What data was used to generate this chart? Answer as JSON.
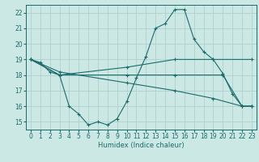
{
  "xlabel": "Humidex (Indice chaleur)",
  "bg_color": "#cce8e4",
  "line_color": "#1a6b6b",
  "grid_color": "#aed0cc",
  "xlim": [
    -0.5,
    23.5
  ],
  "ylim": [
    14.5,
    22.5
  ],
  "yticks": [
    15,
    16,
    17,
    18,
    19,
    20,
    21,
    22
  ],
  "xticks": [
    0,
    1,
    2,
    3,
    4,
    5,
    6,
    7,
    8,
    9,
    10,
    11,
    12,
    13,
    14,
    15,
    16,
    17,
    18,
    19,
    20,
    21,
    22,
    23
  ],
  "series": [
    {
      "x": [
        0,
        1,
        2,
        3,
        4,
        5,
        6,
        7,
        8,
        9,
        10,
        11,
        12,
        13,
        14,
        15,
        16,
        17,
        18,
        19,
        20,
        21,
        22,
        23
      ],
      "y": [
        19,
        18.8,
        18.2,
        18,
        16,
        15.5,
        14.8,
        15,
        14.8,
        15.2,
        16.3,
        17.8,
        19.2,
        21,
        21.3,
        22.2,
        22.2,
        20.3,
        19.5,
        19,
        18.1,
        16.8,
        16,
        16
      ]
    },
    {
      "x": [
        0,
        3,
        10,
        15,
        19,
        23
      ],
      "y": [
        19,
        18,
        18.5,
        19,
        19,
        19
      ]
    },
    {
      "x": [
        0,
        3,
        10,
        15,
        20,
        22,
        23
      ],
      "y": [
        19,
        18,
        18,
        18,
        18,
        16,
        16
      ]
    },
    {
      "x": [
        0,
        3,
        10,
        15,
        19,
        22,
        23
      ],
      "y": [
        19,
        18.2,
        17.5,
        17,
        16.5,
        16,
        16
      ]
    }
  ]
}
